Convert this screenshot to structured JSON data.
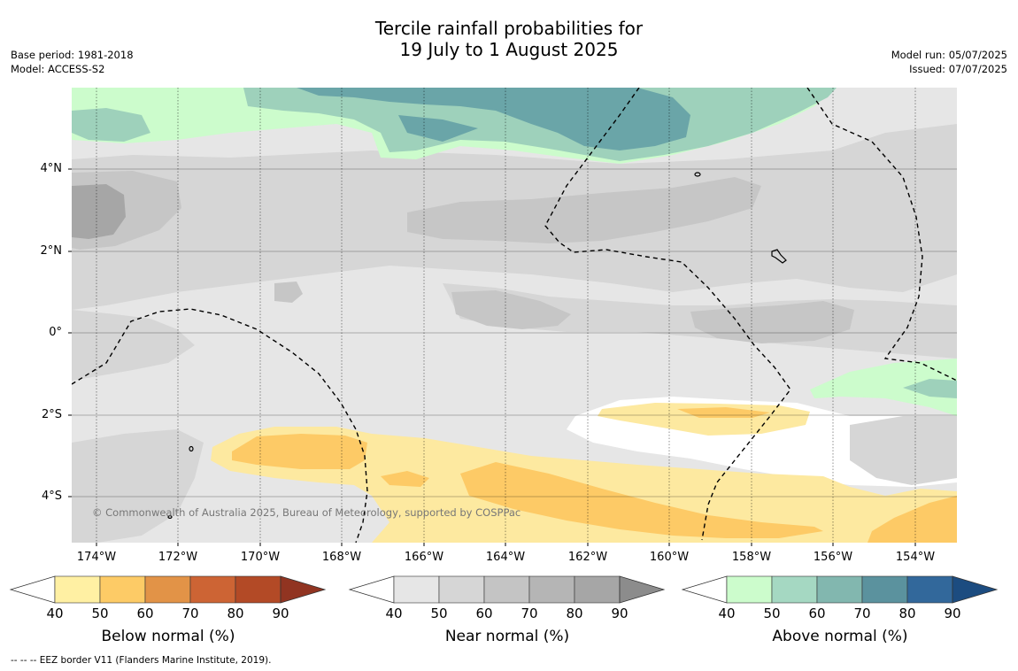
{
  "title": {
    "line1": "Tercile rainfall probabilities for",
    "line2": "19 July to 1 August 2025"
  },
  "meta_left": {
    "base_period": "Base period: 1981-2018",
    "model": "Model: ACCESS-S2"
  },
  "meta_right": {
    "model_run": "Model run: 05/07/2025",
    "issued": "Issued: 07/07/2025"
  },
  "map": {
    "lat_labels": [
      "4°N",
      "2°N",
      "0°",
      "2°S",
      "4°S"
    ],
    "lon_labels": [
      "174°W",
      "172°W",
      "170°W",
      "168°W",
      "166°W",
      "164°W",
      "162°W",
      "160°W",
      "158°W",
      "156°W",
      "154°W"
    ],
    "copyright": "© Commonwealth of Australia 2025, Bureau of Meteorology, supported by COSPPac",
    "colors": {
      "below_40": "#fde9a0",
      "below_50": "#fdca66",
      "near_40": "#e6e6e6",
      "near_50": "#d6d6d6",
      "near_60": "#c6c6c6",
      "near_70": "#b3b3b3",
      "near_80": "#a6a6a6",
      "above_40": "#ccfccc",
      "above_50": "#9ed1bb",
      "above_60": "#80b8ad",
      "above_70": "#6aa5a8"
    }
  },
  "colorbars": [
    {
      "title": "Below normal (%)",
      "ticks": [
        "40",
        "50",
        "60",
        "70",
        "80",
        "90"
      ],
      "colors": [
        "#fff0a3",
        "#fdcb66",
        "#e29347",
        "#cd6434",
        "#b34a26",
        "#913421"
      ]
    },
    {
      "title": "Near normal (%)",
      "ticks": [
        "40",
        "50",
        "60",
        "70",
        "80",
        "90"
      ],
      "colors": [
        "#e6e6e6",
        "#d6d6d6",
        "#c4c4c4",
        "#b5b5b5",
        "#a6a6a6",
        "#8c8c8c"
      ]
    },
    {
      "title": "Above normal (%)",
      "ticks": [
        "40",
        "50",
        "60",
        "70",
        "80",
        "90"
      ],
      "colors": [
        "#ccfccc",
        "#a5d8c2",
        "#82b7af",
        "#5b929e",
        "#32689b",
        "#1c4c80"
      ]
    }
  ],
  "footnote": "--  --  -- EEZ border V11 (Flanders Marine Institute, 2019)."
}
